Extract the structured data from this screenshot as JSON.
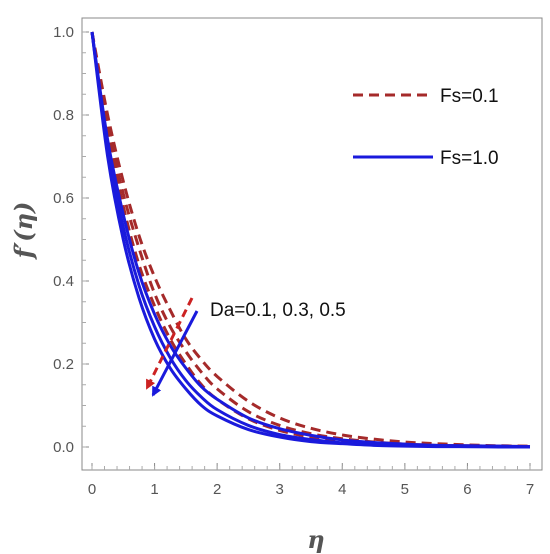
{
  "chart_data": {
    "type": "line",
    "title": "",
    "xlabel": "η",
    "ylabel": "f′(η)",
    "xlim": [
      0,
      7
    ],
    "ylim": [
      0,
      1.0
    ],
    "x_ticks": [
      0,
      1,
      2,
      3,
      4,
      5,
      6,
      7
    ],
    "y_ticks": [
      "0.0",
      "0.2",
      "0.4",
      "0.6",
      "0.8",
      "1.0"
    ],
    "grid": false,
    "legend_position": "top-right",
    "legend": [
      {
        "label": "Fs=0.1",
        "style": "dashed",
        "color": "#a52a2a"
      },
      {
        "label": "Fs=1.0",
        "style": "solid",
        "color": "#1a1adc"
      }
    ],
    "annotation": "Da=0.1, 0.3, 0.5",
    "x": [
      0,
      0.25,
      0.5,
      0.75,
      1.0,
      1.25,
      1.5,
      1.75,
      2.0,
      2.5,
      3.0,
      3.5,
      4.0,
      4.5,
      5.0,
      5.5,
      6.0,
      6.5,
      7.0
    ],
    "series": [
      {
        "group": "Fs=0.1",
        "Da": "0.1",
        "style": "dashed",
        "color": "#a52a2a",
        "values": [
          1.0,
          0.8,
          0.64,
          0.51,
          0.41,
          0.33,
          0.26,
          0.21,
          0.17,
          0.11,
          0.07,
          0.045,
          0.029,
          0.019,
          0.012,
          0.008,
          0.005,
          0.003,
          0.002
        ]
      },
      {
        "group": "Fs=0.1",
        "Da": "0.3",
        "style": "dashed",
        "color": "#a52a2a",
        "values": [
          1.0,
          0.78,
          0.61,
          0.48,
          0.37,
          0.29,
          0.23,
          0.18,
          0.14,
          0.085,
          0.052,
          0.032,
          0.02,
          0.012,
          0.007,
          0.004,
          0.003,
          0.002,
          0.001
        ]
      },
      {
        "group": "Fs=0.1",
        "Da": "0.5",
        "style": "dashed",
        "color": "#a52a2a",
        "values": [
          1.0,
          0.76,
          0.58,
          0.44,
          0.34,
          0.26,
          0.2,
          0.15,
          0.115,
          0.068,
          0.04,
          0.024,
          0.014,
          0.008,
          0.005,
          0.003,
          0.002,
          0.001,
          0.0
        ]
      },
      {
        "group": "Fs=1.0",
        "Da": "0.1",
        "style": "solid",
        "color": "#1a1adc",
        "values": [
          1.0,
          0.74,
          0.56,
          0.42,
          0.32,
          0.245,
          0.19,
          0.145,
          0.115,
          0.07,
          0.044,
          0.028,
          0.017,
          0.011,
          0.007,
          0.004,
          0.003,
          0.002,
          0.001
        ]
      },
      {
        "group": "Fs=1.0",
        "Da": "0.3",
        "style": "solid",
        "color": "#1a1adc",
        "values": [
          1.0,
          0.72,
          0.53,
          0.39,
          0.29,
          0.215,
          0.16,
          0.12,
          0.09,
          0.052,
          0.03,
          0.018,
          0.01,
          0.006,
          0.004,
          0.002,
          0.001,
          0.001,
          0.0
        ]
      },
      {
        "group": "Fs=1.0",
        "Da": "0.5",
        "style": "solid",
        "color": "#1a1adc",
        "values": [
          1.0,
          0.7,
          0.5,
          0.36,
          0.26,
          0.19,
          0.14,
          0.1,
          0.075,
          0.042,
          0.024,
          0.013,
          0.008,
          0.004,
          0.002,
          0.001,
          0.001,
          0.0,
          0.0
        ]
      }
    ]
  }
}
